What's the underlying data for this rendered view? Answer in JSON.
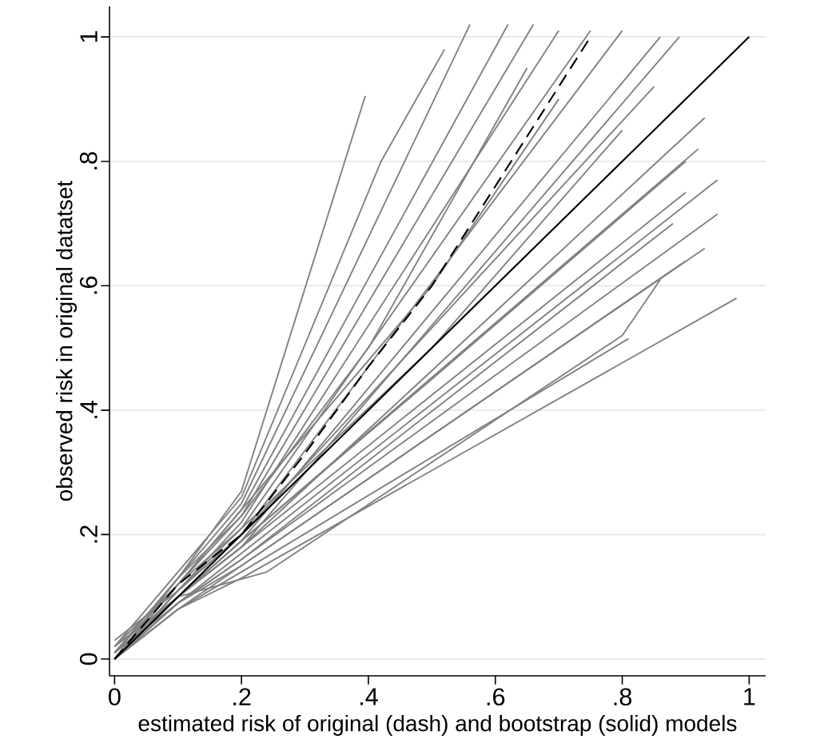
{
  "chart_data": {
    "type": "line",
    "xlabel": "estimated risk of original (dash) and bootstrap (solid) models",
    "ylabel": "observed risk in original datatset",
    "xlim": [
      -0.008,
      1.026
    ],
    "ylim": [
      -0.027,
      1.049
    ],
    "xticks": [
      0,
      {
        "value": 0.2,
        "label": ".2"
      },
      {
        "value": 0.4,
        "label": ".4"
      },
      {
        "value": 0.6,
        "label": ".6"
      },
      {
        "value": 0.8,
        "label": ".8"
      },
      1
    ],
    "yticks": [
      0,
      {
        "value": 0.2,
        "label": ".2"
      },
      {
        "value": 0.4,
        "label": ".4"
      },
      {
        "value": 0.6,
        "label": ".6"
      },
      {
        "value": 0.8,
        "label": ".8"
      },
      1
    ],
    "grid": "y",
    "series": [
      {
        "color": "#808080",
        "x": [
          0.0,
          0.1,
          0.2,
          0.395
        ],
        "values": [
          0.0,
          0.13,
          0.27,
          0.905
        ]
      },
      {
        "color": "#808080",
        "x": [
          0.0,
          0.1,
          0.2,
          0.42,
          0.52
        ],
        "values": [
          0.02,
          0.14,
          0.26,
          0.8,
          0.98
        ]
      },
      {
        "color": "#808080",
        "x": [
          0.0,
          0.1,
          0.2,
          0.56
        ],
        "values": [
          0.01,
          0.13,
          0.25,
          1.02
        ]
      },
      {
        "color": "#808080",
        "x": [
          0.0,
          0.1,
          0.2,
          0.62
        ],
        "values": [
          0.0,
          0.12,
          0.24,
          1.02
        ]
      },
      {
        "color": "#808080",
        "x": [
          0.0,
          0.1,
          0.2,
          0.66
        ],
        "values": [
          0.01,
          0.13,
          0.23,
          1.02
        ]
      },
      {
        "color": "#808080",
        "x": [
          0.0,
          0.1,
          0.2,
          0.7
        ],
        "values": [
          0.0,
          0.11,
          0.22,
          1.01
        ]
      },
      {
        "color": "#808080",
        "x": [
          0.0,
          0.1,
          0.2,
          0.75
        ],
        "values": [
          0.02,
          0.12,
          0.21,
          1.01
        ]
      },
      {
        "color": "#808080",
        "x": [
          0.0,
          0.1,
          0.2,
          0.8
        ],
        "values": [
          0.0,
          0.11,
          0.2,
          1.01
        ]
      },
      {
        "color": "#808080",
        "x": [
          0.0,
          0.1,
          0.2,
          0.86
        ],
        "values": [
          0.01,
          0.1,
          0.19,
          1.0
        ]
      },
      {
        "color": "#808080",
        "x": [
          0.0,
          0.1,
          0.2,
          0.89
        ],
        "values": [
          0.0,
          0.1,
          0.18,
          1.0
        ]
      },
      {
        "color": "#808080",
        "x": [
          0.0,
          0.1,
          0.2,
          0.85
        ],
        "values": [
          0.03,
          0.11,
          0.2,
          0.92
        ]
      },
      {
        "color": "#808080",
        "x": [
          0.0,
          0.1,
          0.2,
          0.92
        ],
        "values": [
          0.0,
          0.1,
          0.19,
          0.82
        ]
      },
      {
        "color": "#808080",
        "x": [
          0.0,
          0.1,
          0.2,
          0.93
        ],
        "values": [
          0.01,
          0.1,
          0.18,
          0.87
        ]
      },
      {
        "color": "#808080",
        "x": [
          0.0,
          0.1,
          0.2,
          0.95
        ],
        "values": [
          0.0,
          0.09,
          0.17,
          0.77
        ]
      },
      {
        "color": "#808080",
        "x": [
          0.0,
          0.1,
          0.2,
          0.9
        ],
        "values": [
          0.02,
          0.1,
          0.18,
          0.75
        ]
      },
      {
        "color": "#808080",
        "x": [
          0.0,
          0.1,
          0.2,
          0.88
        ],
        "values": [
          0.0,
          0.09,
          0.16,
          0.7
        ]
      },
      {
        "color": "#808080",
        "x": [
          0.0,
          0.1,
          0.2,
          0.95
        ],
        "values": [
          0.0,
          0.09,
          0.16,
          0.715
        ]
      },
      {
        "color": "#808080",
        "x": [
          0.0,
          0.1,
          0.2,
          0.93
        ],
        "values": [
          0.01,
          0.09,
          0.15,
          0.66
        ]
      },
      {
        "color": "#808080",
        "x": [
          0.0,
          0.1,
          0.2,
          0.9
        ],
        "values": [
          0.0,
          0.08,
          0.15,
          0.64
        ]
      },
      {
        "color": "#808080",
        "x": [
          0.0,
          0.1,
          0.24,
          0.8,
          0.86
        ],
        "values": [
          0.0,
          0.1,
          0.14,
          0.52,
          0.61
        ]
      },
      {
        "color": "#808080",
        "x": [
          0.0,
          0.1,
          0.2,
          0.81
        ],
        "values": [
          0.0,
          0.08,
          0.14,
          0.515
        ]
      },
      {
        "color": "#808080",
        "x": [
          0.0,
          0.1,
          0.2,
          0.98
        ],
        "values": [
          0.0,
          0.08,
          0.13,
          0.58
        ]
      },
      {
        "color": "#808080",
        "x": [
          0.0,
          0.1,
          0.2,
          0.5,
          0.7
        ],
        "values": [
          0.01,
          0.12,
          0.24,
          0.6,
          0.9
        ]
      },
      {
        "color": "#808080",
        "x": [
          0.0,
          0.1,
          0.2,
          0.5,
          0.8
        ],
        "values": [
          0.0,
          0.11,
          0.21,
          0.5,
          0.85
        ]
      },
      {
        "color": "#808080",
        "x": [
          0.0,
          0.1,
          0.2,
          0.5,
          0.9
        ],
        "values": [
          0.0,
          0.1,
          0.19,
          0.45,
          0.8
        ]
      },
      {
        "color": "#808080",
        "x": [
          0.0,
          0.1,
          0.2,
          0.4,
          0.65
        ],
        "values": [
          0.0,
          0.12,
          0.23,
          0.5,
          0.95
        ]
      },
      {
        "color": "#000000",
        "x": [
          0.0,
          1.0
        ],
        "values": [
          0.0,
          1.0
        ]
      },
      {
        "color": "#000000",
        "line_style": "dashed",
        "x": [
          0.0,
          0.05,
          0.1,
          0.2,
          0.3,
          0.4,
          0.5,
          0.6,
          0.75
        ],
        "values": [
          0.0,
          0.06,
          0.12,
          0.2,
          0.33,
          0.47,
          0.6,
          0.76,
          1.0
        ]
      }
    ]
  }
}
